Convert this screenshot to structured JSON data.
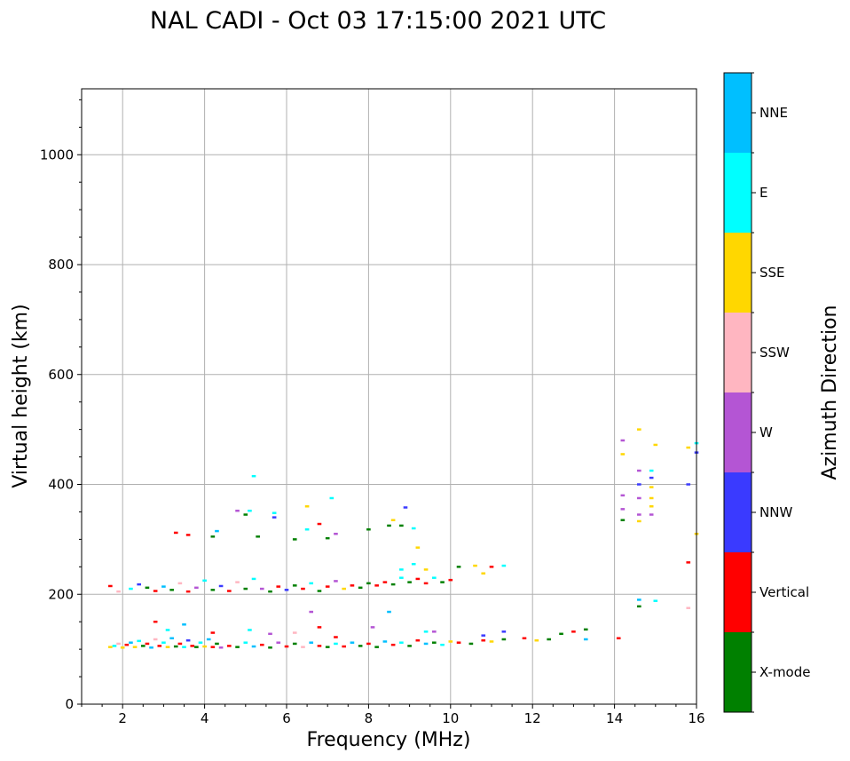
{
  "chart_data": {
    "type": "scatter",
    "title": "NAL CADI - Oct 03 17:15:00 2021 UTC",
    "xlabel": "Frequency (MHz)",
    "ylabel": "Virtual height (km)",
    "xlim": [
      1,
      16
    ],
    "ylim": [
      0,
      1120
    ],
    "xticks": [
      2,
      4,
      6,
      8,
      10,
      12,
      14,
      16
    ],
    "yticks": [
      0,
      200,
      400,
      600,
      800,
      1000
    ],
    "grid": true,
    "colorbar": {
      "label": "Azimuth Direction",
      "entries": [
        {
          "name": "X-mode",
          "color": "#008000"
        },
        {
          "name": "Vertical",
          "color": "#ff0000"
        },
        {
          "name": "NNW",
          "color": "#3a3aff"
        },
        {
          "name": "W",
          "color": "#b455d4"
        },
        {
          "name": "SSW",
          "color": "#ffb6c1"
        },
        {
          "name": "SSE",
          "color": "#ffd700"
        },
        {
          "name": "E",
          "color": "#00ffff"
        },
        {
          "name": "NNE",
          "color": "#00bfff"
        }
      ]
    },
    "points": [
      {
        "f": 1.7,
        "h": 104,
        "c": "SSE"
      },
      {
        "f": 1.8,
        "h": 106,
        "c": "E"
      },
      {
        "f": 1.9,
        "h": 110,
        "c": "SSW"
      },
      {
        "f": 2.0,
        "h": 103,
        "c": "SSE"
      },
      {
        "f": 2.1,
        "h": 108,
        "c": "Vertical"
      },
      {
        "f": 2.2,
        "h": 112,
        "c": "NNE"
      },
      {
        "f": 2.3,
        "h": 104,
        "c": "SSE"
      },
      {
        "f": 2.4,
        "h": 115,
        "c": "E"
      },
      {
        "f": 2.5,
        "h": 106,
        "c": "X-mode"
      },
      {
        "f": 2.6,
        "h": 110,
        "c": "Vertical"
      },
      {
        "f": 2.7,
        "h": 103,
        "c": "NNE"
      },
      {
        "f": 2.8,
        "h": 118,
        "c": "SSW"
      },
      {
        "f": 2.9,
        "h": 106,
        "c": "Vertical"
      },
      {
        "f": 3.0,
        "h": 112,
        "c": "E"
      },
      {
        "f": 3.1,
        "h": 104,
        "c": "SSE"
      },
      {
        "f": 3.2,
        "h": 120,
        "c": "NNE"
      },
      {
        "f": 3.3,
        "h": 105,
        "c": "X-mode"
      },
      {
        "f": 3.4,
        "h": 110,
        "c": "Vertical"
      },
      {
        "f": 3.5,
        "h": 104,
        "c": "E"
      },
      {
        "f": 3.6,
        "h": 116,
        "c": "NNW"
      },
      {
        "f": 3.7,
        "h": 106,
        "c": "Vertical"
      },
      {
        "f": 3.8,
        "h": 104,
        "c": "X-mode"
      },
      {
        "f": 3.9,
        "h": 112,
        "c": "E"
      },
      {
        "f": 4.0,
        "h": 105,
        "c": "SSE"
      },
      {
        "f": 4.1,
        "h": 118,
        "c": "NNE"
      },
      {
        "f": 4.2,
        "h": 104,
        "c": "Vertical"
      },
      {
        "f": 4.3,
        "h": 110,
        "c": "X-mode"
      },
      {
        "f": 4.4,
        "h": 103,
        "c": "W"
      },
      {
        "f": 4.6,
        "h": 106,
        "c": "Vertical"
      },
      {
        "f": 4.8,
        "h": 104,
        "c": "X-mode"
      },
      {
        "f": 5.0,
        "h": 112,
        "c": "E"
      },
      {
        "f": 5.2,
        "h": 105,
        "c": "NNE"
      },
      {
        "f": 5.4,
        "h": 108,
        "c": "Vertical"
      },
      {
        "f": 5.6,
        "h": 103,
        "c": "X-mode"
      },
      {
        "f": 5.8,
        "h": 112,
        "c": "W"
      },
      {
        "f": 6.0,
        "h": 105,
        "c": "Vertical"
      },
      {
        "f": 6.2,
        "h": 110,
        "c": "X-mode"
      },
      {
        "f": 6.4,
        "h": 104,
        "c": "SSW"
      },
      {
        "f": 6.6,
        "h": 112,
        "c": "NNE"
      },
      {
        "f": 6.8,
        "h": 106,
        "c": "Vertical"
      },
      {
        "f": 7.0,
        "h": 104,
        "c": "X-mode"
      },
      {
        "f": 7.2,
        "h": 110,
        "c": "E"
      },
      {
        "f": 7.4,
        "h": 105,
        "c": "Vertical"
      },
      {
        "f": 7.6,
        "h": 112,
        "c": "NNE"
      },
      {
        "f": 7.8,
        "h": 106,
        "c": "X-mode"
      },
      {
        "f": 8.0,
        "h": 110,
        "c": "Vertical"
      },
      {
        "f": 8.2,
        "h": 104,
        "c": "X-mode"
      },
      {
        "f": 8.4,
        "h": 114,
        "c": "NNE"
      },
      {
        "f": 8.6,
        "h": 108,
        "c": "Vertical"
      },
      {
        "f": 8.8,
        "h": 112,
        "c": "E"
      },
      {
        "f": 9.0,
        "h": 106,
        "c": "X-mode"
      },
      {
        "f": 9.2,
        "h": 116,
        "c": "Vertical"
      },
      {
        "f": 9.4,
        "h": 110,
        "c": "NNE"
      },
      {
        "f": 9.6,
        "h": 112,
        "c": "X-mode"
      },
      {
        "f": 9.8,
        "h": 108,
        "c": "E"
      },
      {
        "f": 10.0,
        "h": 114,
        "c": "SSE"
      },
      {
        "f": 10.2,
        "h": 112,
        "c": "Vertical"
      },
      {
        "f": 10.5,
        "h": 110,
        "c": "X-mode"
      },
      {
        "f": 10.8,
        "h": 116,
        "c": "Vertical"
      },
      {
        "f": 11.0,
        "h": 114,
        "c": "SSE"
      },
      {
        "f": 11.3,
        "h": 118,
        "c": "X-mode"
      },
      {
        "f": 11.8,
        "h": 120,
        "c": "Vertical"
      },
      {
        "f": 12.1,
        "h": 116,
        "c": "SSE"
      },
      {
        "f": 12.4,
        "h": 118,
        "c": "X-mode"
      },
      {
        "f": 12.7,
        "h": 128,
        "c": "X-mode"
      },
      {
        "f": 13.0,
        "h": 132,
        "c": "Vertical"
      },
      {
        "f": 13.3,
        "h": 136,
        "c": "X-mode"
      },
      {
        "f": 13.3,
        "h": 118,
        "c": "NNE"
      },
      {
        "f": 14.1,
        "h": 120,
        "c": "Vertical"
      },
      {
        "f": 2.8,
        "h": 150,
        "c": "Vertical"
      },
      {
        "f": 3.1,
        "h": 135,
        "c": "E"
      },
      {
        "f": 3.5,
        "h": 145,
        "c": "NNE"
      },
      {
        "f": 4.2,
        "h": 130,
        "c": "Vertical"
      },
      {
        "f": 5.1,
        "h": 135,
        "c": "E"
      },
      {
        "f": 5.6,
        "h": 128,
        "c": "W"
      },
      {
        "f": 6.2,
        "h": 130,
        "c": "SSW"
      },
      {
        "f": 6.6,
        "h": 168,
        "c": "W"
      },
      {
        "f": 6.8,
        "h": 140,
        "c": "Vertical"
      },
      {
        "f": 7.2,
        "h": 122,
        "c": "Vertical"
      },
      {
        "f": 8.1,
        "h": 140,
        "c": "W"
      },
      {
        "f": 8.5,
        "h": 168,
        "c": "NNE"
      },
      {
        "f": 9.4,
        "h": 132,
        "c": "E"
      },
      {
        "f": 9.6,
        "h": 132,
        "c": "W"
      },
      {
        "f": 10.8,
        "h": 125,
        "c": "NNW"
      },
      {
        "f": 11.3,
        "h": 132,
        "c": "NNW"
      },
      {
        "f": 1.7,
        "h": 215,
        "c": "Vertical"
      },
      {
        "f": 1.9,
        "h": 205,
        "c": "SSW"
      },
      {
        "f": 2.2,
        "h": 210,
        "c": "E"
      },
      {
        "f": 2.4,
        "h": 218,
        "c": "NNW"
      },
      {
        "f": 2.6,
        "h": 212,
        "c": "X-mode"
      },
      {
        "f": 2.8,
        "h": 206,
        "c": "Vertical"
      },
      {
        "f": 3.0,
        "h": 214,
        "c": "NNE"
      },
      {
        "f": 3.2,
        "h": 208,
        "c": "X-mode"
      },
      {
        "f": 3.4,
        "h": 220,
        "c": "SSW"
      },
      {
        "f": 3.6,
        "h": 205,
        "c": "Vertical"
      },
      {
        "f": 3.8,
        "h": 212,
        "c": "W"
      },
      {
        "f": 4.0,
        "h": 225,
        "c": "E"
      },
      {
        "f": 4.2,
        "h": 208,
        "c": "X-mode"
      },
      {
        "f": 4.4,
        "h": 215,
        "c": "NNW"
      },
      {
        "f": 4.6,
        "h": 206,
        "c": "Vertical"
      },
      {
        "f": 4.8,
        "h": 222,
        "c": "SSW"
      },
      {
        "f": 5.0,
        "h": 210,
        "c": "X-mode"
      },
      {
        "f": 5.2,
        "h": 228,
        "c": "E"
      },
      {
        "f": 5.4,
        "h": 210,
        "c": "W"
      },
      {
        "f": 5.6,
        "h": 205,
        "c": "X-mode"
      },
      {
        "f": 5.8,
        "h": 214,
        "c": "Vertical"
      },
      {
        "f": 6.0,
        "h": 208,
        "c": "NNW"
      },
      {
        "f": 6.2,
        "h": 216,
        "c": "X-mode"
      },
      {
        "f": 6.4,
        "h": 210,
        "c": "Vertical"
      },
      {
        "f": 6.6,
        "h": 220,
        "c": "E"
      },
      {
        "f": 6.8,
        "h": 206,
        "c": "X-mode"
      },
      {
        "f": 7.0,
        "h": 214,
        "c": "Vertical"
      },
      {
        "f": 7.2,
        "h": 224,
        "c": "W"
      },
      {
        "f": 7.4,
        "h": 210,
        "c": "SSE"
      },
      {
        "f": 7.6,
        "h": 216,
        "c": "Vertical"
      },
      {
        "f": 7.8,
        "h": 212,
        "c": "X-mode"
      },
      {
        "f": 8.0,
        "h": 220,
        "c": "X-mode"
      },
      {
        "f": 8.2,
        "h": 216,
        "c": "Vertical"
      },
      {
        "f": 8.4,
        "h": 222,
        "c": "Vertical"
      },
      {
        "f": 8.6,
        "h": 218,
        "c": "X-mode"
      },
      {
        "f": 8.8,
        "h": 230,
        "c": "E"
      },
      {
        "f": 9.0,
        "h": 222,
        "c": "X-mode"
      },
      {
        "f": 9.2,
        "h": 228,
        "c": "Vertical"
      },
      {
        "f": 9.4,
        "h": 220,
        "c": "Vertical"
      },
      {
        "f": 9.6,
        "h": 230,
        "c": "E"
      },
      {
        "f": 9.8,
        "h": 222,
        "c": "X-mode"
      },
      {
        "f": 10.0,
        "h": 226,
        "c": "Vertical"
      },
      {
        "f": 10.2,
        "h": 250,
        "c": "X-mode"
      },
      {
        "f": 10.6,
        "h": 252,
        "c": "SSE"
      },
      {
        "f": 10.8,
        "h": 238,
        "c": "SSE"
      },
      {
        "f": 11.0,
        "h": 250,
        "c": "Vertical"
      },
      {
        "f": 11.3,
        "h": 252,
        "c": "E"
      },
      {
        "f": 9.1,
        "h": 255,
        "c": "E"
      },
      {
        "f": 9.4,
        "h": 245,
        "c": "SSE"
      },
      {
        "f": 8.8,
        "h": 245,
        "c": "E"
      },
      {
        "f": 3.3,
        "h": 312,
        "c": "Vertical"
      },
      {
        "f": 3.6,
        "h": 308,
        "c": "Vertical"
      },
      {
        "f": 4.2,
        "h": 305,
        "c": "X-mode"
      },
      {
        "f": 4.3,
        "h": 315,
        "c": "NNE"
      },
      {
        "f": 4.8,
        "h": 352,
        "c": "W"
      },
      {
        "f": 5.1,
        "h": 352,
        "c": "E"
      },
      {
        "f": 5.0,
        "h": 345,
        "c": "X-mode"
      },
      {
        "f": 5.3,
        "h": 305,
        "c": "X-mode"
      },
      {
        "f": 5.7,
        "h": 348,
        "c": "E"
      },
      {
        "f": 5.7,
        "h": 340,
        "c": "NNW"
      },
      {
        "f": 6.2,
        "h": 300,
        "c": "X-mode"
      },
      {
        "f": 6.5,
        "h": 318,
        "c": "E"
      },
      {
        "f": 6.5,
        "h": 360,
        "c": "SSE"
      },
      {
        "f": 6.8,
        "h": 328,
        "c": "Vertical"
      },
      {
        "f": 7.1,
        "h": 375,
        "c": "E"
      },
      {
        "f": 7.0,
        "h": 302,
        "c": "X-mode"
      },
      {
        "f": 7.2,
        "h": 310,
        "c": "W"
      },
      {
        "f": 8.0,
        "h": 318,
        "c": "X-mode"
      },
      {
        "f": 8.5,
        "h": 325,
        "c": "X-mode"
      },
      {
        "f": 8.6,
        "h": 335,
        "c": "SSE"
      },
      {
        "f": 8.8,
        "h": 325,
        "c": "X-mode"
      },
      {
        "f": 8.9,
        "h": 358,
        "c": "NNW"
      },
      {
        "f": 9.1,
        "h": 320,
        "c": "E"
      },
      {
        "f": 9.2,
        "h": 285,
        "c": "SSE"
      },
      {
        "f": 5.2,
        "h": 415,
        "c": "E"
      },
      {
        "f": 14.2,
        "h": 480,
        "c": "W"
      },
      {
        "f": 14.6,
        "h": 500,
        "c": "SSE"
      },
      {
        "f": 14.2,
        "h": 455,
        "c": "SSE"
      },
      {
        "f": 15.0,
        "h": 472,
        "c": "SSE"
      },
      {
        "f": 14.6,
        "h": 425,
        "c": "W"
      },
      {
        "f": 14.9,
        "h": 425,
        "c": "E"
      },
      {
        "f": 14.9,
        "h": 412,
        "c": "NNW"
      },
      {
        "f": 14.6,
        "h": 400,
        "c": "NNW"
      },
      {
        "f": 14.9,
        "h": 395,
        "c": "SSE"
      },
      {
        "f": 14.2,
        "h": 380,
        "c": "W"
      },
      {
        "f": 14.6,
        "h": 375,
        "c": "W"
      },
      {
        "f": 14.9,
        "h": 375,
        "c": "SSE"
      },
      {
        "f": 14.9,
        "h": 360,
        "c": "SSE"
      },
      {
        "f": 14.2,
        "h": 355,
        "c": "W"
      },
      {
        "f": 14.6,
        "h": 345,
        "c": "W"
      },
      {
        "f": 14.9,
        "h": 345,
        "c": "W"
      },
      {
        "f": 14.6,
        "h": 333,
        "c": "SSE"
      },
      {
        "f": 14.2,
        "h": 335,
        "c": "X-mode"
      },
      {
        "f": 15.8,
        "h": 467,
        "c": "SSE"
      },
      {
        "f": 15.8,
        "h": 400,
        "c": "NNW"
      },
      {
        "f": 16.0,
        "h": 458,
        "c": "NNW"
      },
      {
        "f": 16.0,
        "h": 475,
        "c": "E"
      },
      {
        "f": 15.8,
        "h": 258,
        "c": "Vertical"
      },
      {
        "f": 14.6,
        "h": 190,
        "c": "NNE"
      },
      {
        "f": 15.0,
        "h": 188,
        "c": "E"
      },
      {
        "f": 14.6,
        "h": 178,
        "c": "X-mode"
      },
      {
        "f": 15.8,
        "h": 175,
        "c": "SSW"
      },
      {
        "f": 16.0,
        "h": 310,
        "c": "SSE"
      }
    ]
  }
}
